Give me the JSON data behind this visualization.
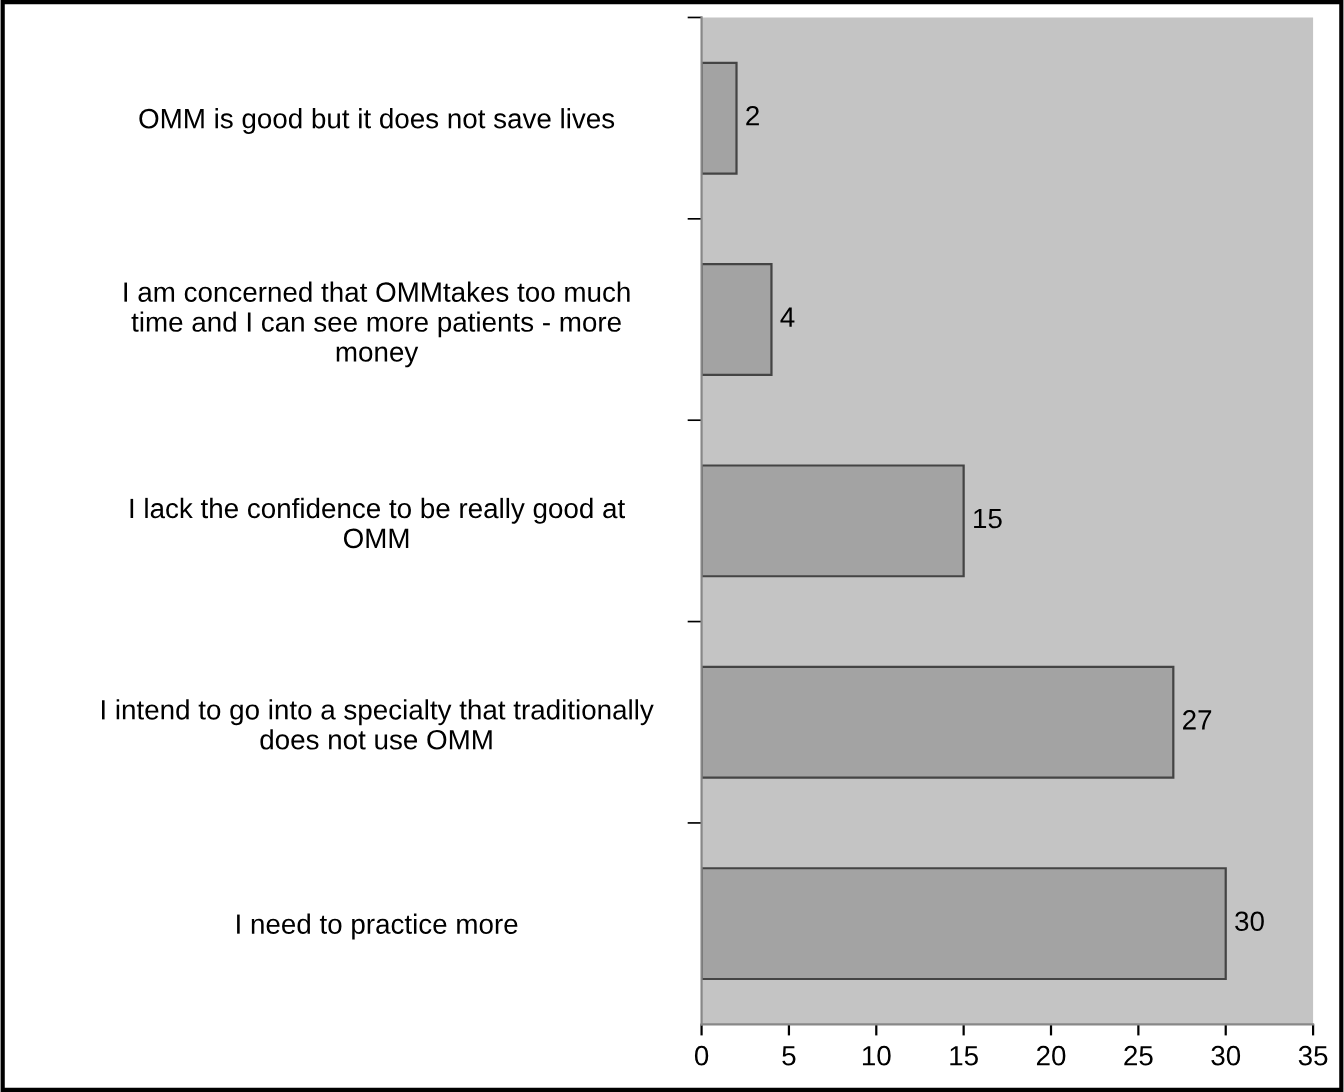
{
  "chart_data": {
    "type": "bar",
    "orientation": "horizontal",
    "categories": [
      "OMM is good but it does not save lives",
      "I am concerned that OMMtakes too much\ntime and I can see more patients - more\nmoney",
      "I lack the confidence to be really good at\nOMM",
      "I intend to go into a specialty that traditionally\ndoes not use OMM",
      "I need to practice more"
    ],
    "values": [
      2,
      4,
      15,
      27,
      30
    ],
    "color": "#a3a3a3",
    "xlim": [
      0,
      35
    ],
    "xticks": [
      0,
      5,
      10,
      15,
      20,
      25,
      30,
      35
    ],
    "grid": false,
    "data_labels": true,
    "legend": false
  }
}
